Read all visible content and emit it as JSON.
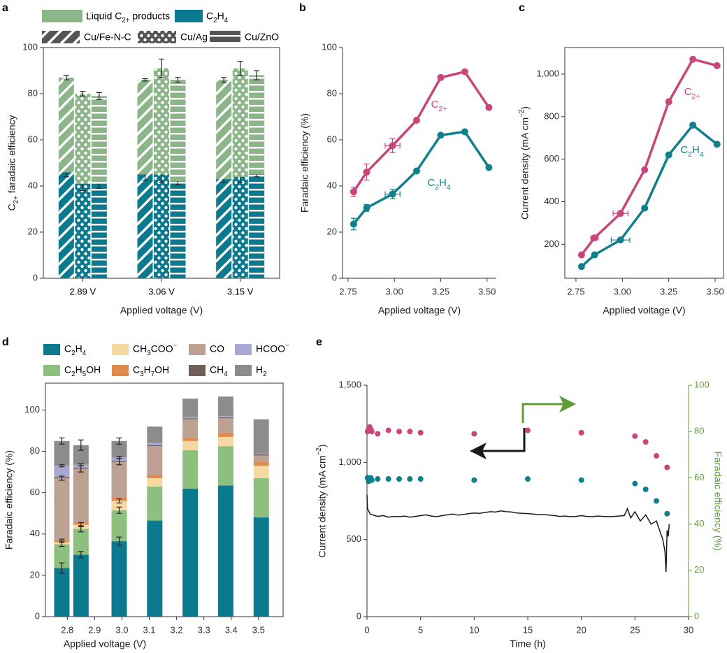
{
  "chart_data": [
    {
      "type": "grouped-stacked-bar",
      "label": "a",
      "categories": [
        "2.89 V",
        "3.06 V",
        "3.15 V"
      ],
      "xlabel": "Applied voltage (V)",
      "ylabel": "C2+ faradaic efficiency",
      "ylim": [
        0,
        100
      ],
      "yticks": [
        0,
        20,
        40,
        60,
        80,
        100
      ],
      "series": [
        {
          "name": "C2H4",
          "color": "#0b7a8e",
          "values": [
            [
              46,
              41,
              41
            ],
            [
              45,
              45,
              42
            ],
            [
              43,
              44,
              45
            ]
          ],
          "errors": [
            [
              2,
              3,
              2
            ],
            [
              2.5,
              3.5,
              1.5
            ],
            [
              1.5,
              2.5,
              1
            ]
          ]
        },
        {
          "name": "Liquid C2+ products",
          "color": "#8db58a",
          "values": [
            [
              41,
              39,
              38
            ],
            [
              41,
              46,
              44
            ],
            [
              43,
              47,
              43
            ]
          ],
          "errors": [
            [
              1,
              1,
              1.5
            ],
            [
              0.5,
              4,
              1
            ],
            [
              1,
              3,
              2
            ]
          ]
        }
      ],
      "groups": [
        {
          "name": "Cu/Fe-N-C",
          "pattern": "hatch"
        },
        {
          "name": "Cu/Ag",
          "pattern": "dots"
        },
        {
          "name": "Cu/ZnO",
          "pattern": "stripes"
        }
      ]
    },
    {
      "type": "line",
      "label": "b",
      "x": [
        2.78,
        2.85,
        2.99,
        3.12,
        3.25,
        3.38,
        3.51
      ],
      "xlim": [
        2.72,
        3.55
      ],
      "xticks": [
        2.75,
        {
          "value": 3,
          "label": "3.00"
        },
        3.25,
        {
          "value": 3.5,
          "label": "3.50"
        }
      ],
      "ylim": [
        0,
        100
      ],
      "yticks": [
        0,
        20,
        40,
        60,
        80,
        100
      ],
      "xlabel": "Applied voltage (V)",
      "ylabel": "Faradaic efficiency (%)",
      "series": [
        {
          "name": "C2+",
          "color": "#c9467a",
          "values": [
            37.5,
            46,
            57.5,
            68.5,
            87,
            89.5,
            74
          ],
          "errors": [
            2,
            3.5,
            3,
            0,
            0,
            0,
            0
          ],
          "xerrors": [
            0,
            0.01,
            0.04,
            0,
            0,
            0,
            0
          ]
        },
        {
          "name": "C2H4",
          "color": "#10808c",
          "values": [
            23.5,
            30.5,
            36.5,
            46.5,
            62,
            63.5,
            48
          ],
          "errors": [
            2.5,
            1.5,
            2,
            0,
            0,
            0,
            0
          ],
          "xerrors": [
            0,
            0.01,
            0.04,
            0,
            0,
            0,
            0
          ]
        }
      ]
    },
    {
      "type": "line",
      "label": "c",
      "x": [
        2.78,
        2.85,
        2.99,
        3.12,
        3.25,
        3.38,
        3.51
      ],
      "xlim": [
        2.69,
        3.545
      ],
      "xticks": [
        2.75,
        {
          "value": 3,
          "label": "3.00"
        },
        3.25,
        {
          "value": 3.5,
          "label": "3.50"
        }
      ],
      "ylim": [
        40,
        1125
      ],
      "yticks": [
        200,
        400,
        600,
        800,
        {
          "value": 1000,
          "label": "1,000"
        }
      ],
      "xlabel": "Applied voltage (V)",
      "ylabel": "Current density (mA cm−2)",
      "series": [
        {
          "name": "C2+",
          "color": "#c9467a",
          "values": [
            150,
            230,
            345,
            550,
            870,
            1070,
            1040
          ],
          "xerrors": [
            0,
            0.02,
            0.04,
            0,
            0,
            0,
            0
          ]
        },
        {
          "name": "C2H4",
          "color": "#10808c",
          "values": [
            95,
            150,
            220,
            370,
            620,
            760,
            670
          ],
          "xerrors": [
            0,
            0,
            0.05,
            0,
            0,
            0,
            0
          ]
        }
      ]
    },
    {
      "type": "stacked-bar",
      "label": "d",
      "x": [
        2.78,
        2.85,
        2.99,
        3.12,
        3.25,
        3.38,
        3.51
      ],
      "xlim": [
        2.72,
        3.59
      ],
      "xticks": [
        2.8,
        2.9,
        {
          "value": 3,
          "label": "3.0"
        },
        3.1,
        3.2,
        3.3,
        3.4,
        3.5
      ],
      "ylim": [
        0,
        113
      ],
      "yticks": [
        0,
        20,
        40,
        60,
        80,
        100
      ],
      "xlabel": "Applied voltage (V)",
      "ylabel": "Faradaic efficiency (%)",
      "series": [
        {
          "name": "C2H4",
          "color": "#0b7a8e",
          "values": [
            23.5,
            30,
            36.5,
            46.5,
            62,
            63.5,
            48
          ],
          "errors": [
            2.5,
            1.5,
            2,
            null,
            null,
            null,
            null
          ]
        },
        {
          "name": "C2H5OH",
          "color": "#8dbf7e",
          "values": [
            11.5,
            12.5,
            15,
            16.5,
            18.5,
            19,
            19
          ],
          "errors": [
            1,
            1.5,
            1.5,
            null,
            null,
            null,
            null
          ]
        },
        {
          "name": "CH3COO−",
          "color": "#f6d9a0",
          "values": [
            1,
            2,
            4.5,
            4,
            4.5,
            4.5,
            6
          ],
          "errors": [
            null,
            1,
            1,
            null,
            null,
            null,
            null
          ]
        },
        {
          "name": "C3H7OH",
          "color": "#e08a4d",
          "values": [
            1,
            1,
            1.5,
            1.5,
            1.5,
            2,
            2
          ],
          "errors": [
            0.5,
            null,
            null,
            null,
            null,
            null,
            null
          ]
        },
        {
          "name": "CO",
          "color": "#bda193",
          "values": [
            30,
            26,
            17.5,
            14,
            9,
            7,
            3
          ],
          "errors": [
            1,
            1.5,
            1.5,
            null,
            null,
            null,
            null
          ]
        },
        {
          "name": "CH4",
          "color": "#6e6058",
          "values": [
            0.5,
            0.5,
            0.5,
            0.5,
            0.5,
            0.5,
            0.5
          ],
          "errors": [
            null,
            null,
            null,
            null,
            null,
            null,
            null
          ]
        },
        {
          "name": "HCOO−",
          "color": "#a9a7d4",
          "values": [
            5.5,
            1.5,
            1.5,
            1,
            0.5,
            0.5,
            0.5
          ],
          "errors": [
            0.5,
            0.5,
            0.5,
            null,
            null,
            null,
            null
          ]
        },
        {
          "name": "H2",
          "color": "#8c8c8c",
          "values": [
            12,
            9.5,
            8,
            8,
            9,
            9.5,
            16.5
          ],
          "errors": [
            1.5,
            2.5,
            1.5,
            null,
            null,
            null,
            null
          ]
        }
      ]
    },
    {
      "type": "dual-axis",
      "label": "e",
      "xlim": [
        0,
        30
      ],
      "xticks": [
        0,
        5,
        10,
        15,
        20,
        25,
        30
      ],
      "ylim": [
        0,
        1500
      ],
      "yticks": [
        0,
        500,
        {
          "value": 1000,
          "label": "1,000"
        },
        {
          "value": 1500,
          "label": "1,500"
        }
      ],
      "y2lim": [
        0,
        100
      ],
      "y2ticks": [
        0,
        20,
        40,
        60,
        80,
        100
      ],
      "y2color": "#5e9c3a",
      "xlabel": "Time (h)",
      "ylabel": "Current density (mA cm−2)",
      "y2label": "Faradaic efficiency (%)",
      "series": [
        {
          "type": "line",
          "color": "#1a1a1a",
          "x": [
            0,
            0.05,
            0.3,
            0.5,
            1,
            1.5,
            2,
            2.5,
            3,
            3.5,
            4,
            4.5,
            5,
            5.5,
            6,
            6.5,
            7,
            7.5,
            8,
            8.5,
            9,
            9.5,
            10,
            10.5,
            11,
            11.5,
            12,
            12.5,
            13,
            13.5,
            14,
            14.5,
            15,
            15.5,
            16,
            16.5,
            17,
            17.5,
            18,
            18.5,
            19,
            19.5,
            20,
            20.5,
            21,
            21.5,
            22,
            22.5,
            23,
            23.5,
            24,
            24.3,
            24.6,
            25,
            25.5,
            26,
            26.5,
            27,
            27.3,
            27.6,
            27.8,
            27.9,
            28,
            28.1,
            28.2
          ],
          "values": [
            790,
            700,
            665,
            660,
            650,
            655,
            645,
            650,
            648,
            652,
            645,
            650,
            655,
            660,
            652,
            648,
            655,
            660,
            665,
            658,
            662,
            668,
            672,
            670,
            675,
            680,
            678,
            685,
            680,
            678,
            672,
            670,
            668,
            665,
            660,
            662,
            658,
            655,
            650,
            652,
            648,
            650,
            655,
            650,
            648,
            652,
            650,
            648,
            650,
            652,
            655,
            700,
            640,
            680,
            620,
            660,
            600,
            620,
            560,
            500,
            420,
            290,
            560,
            520,
            600
          ]
        },
        {
          "type": "scatter",
          "axis": "y2",
          "color": "#c9467a",
          "x": [
            0.05,
            0.15,
            0.25,
            0.35,
            0.45,
            1,
            2,
            3,
            4,
            5,
            10,
            15,
            20,
            25,
            26,
            27,
            28
          ],
          "values": [
            80,
            81,
            82,
            81,
            80,
            79,
            80.5,
            80,
            80,
            79.5,
            79,
            80.5,
            79.5,
            78,
            75.5,
            69.5,
            64.5
          ]
        },
        {
          "type": "scatter",
          "axis": "y2",
          "color": "#10808c",
          "x": [
            0.05,
            0.15,
            0.25,
            0.35,
            0.45,
            1,
            2,
            3,
            4,
            5,
            10,
            15,
            20,
            25,
            26,
            27,
            28
          ],
          "values": [
            60,
            58.5,
            59.5,
            60,
            59,
            59.5,
            59.5,
            59.5,
            59.5,
            59.5,
            59,
            59.5,
            59,
            57.5,
            55,
            50,
            44.5
          ]
        }
      ]
    }
  ]
}
